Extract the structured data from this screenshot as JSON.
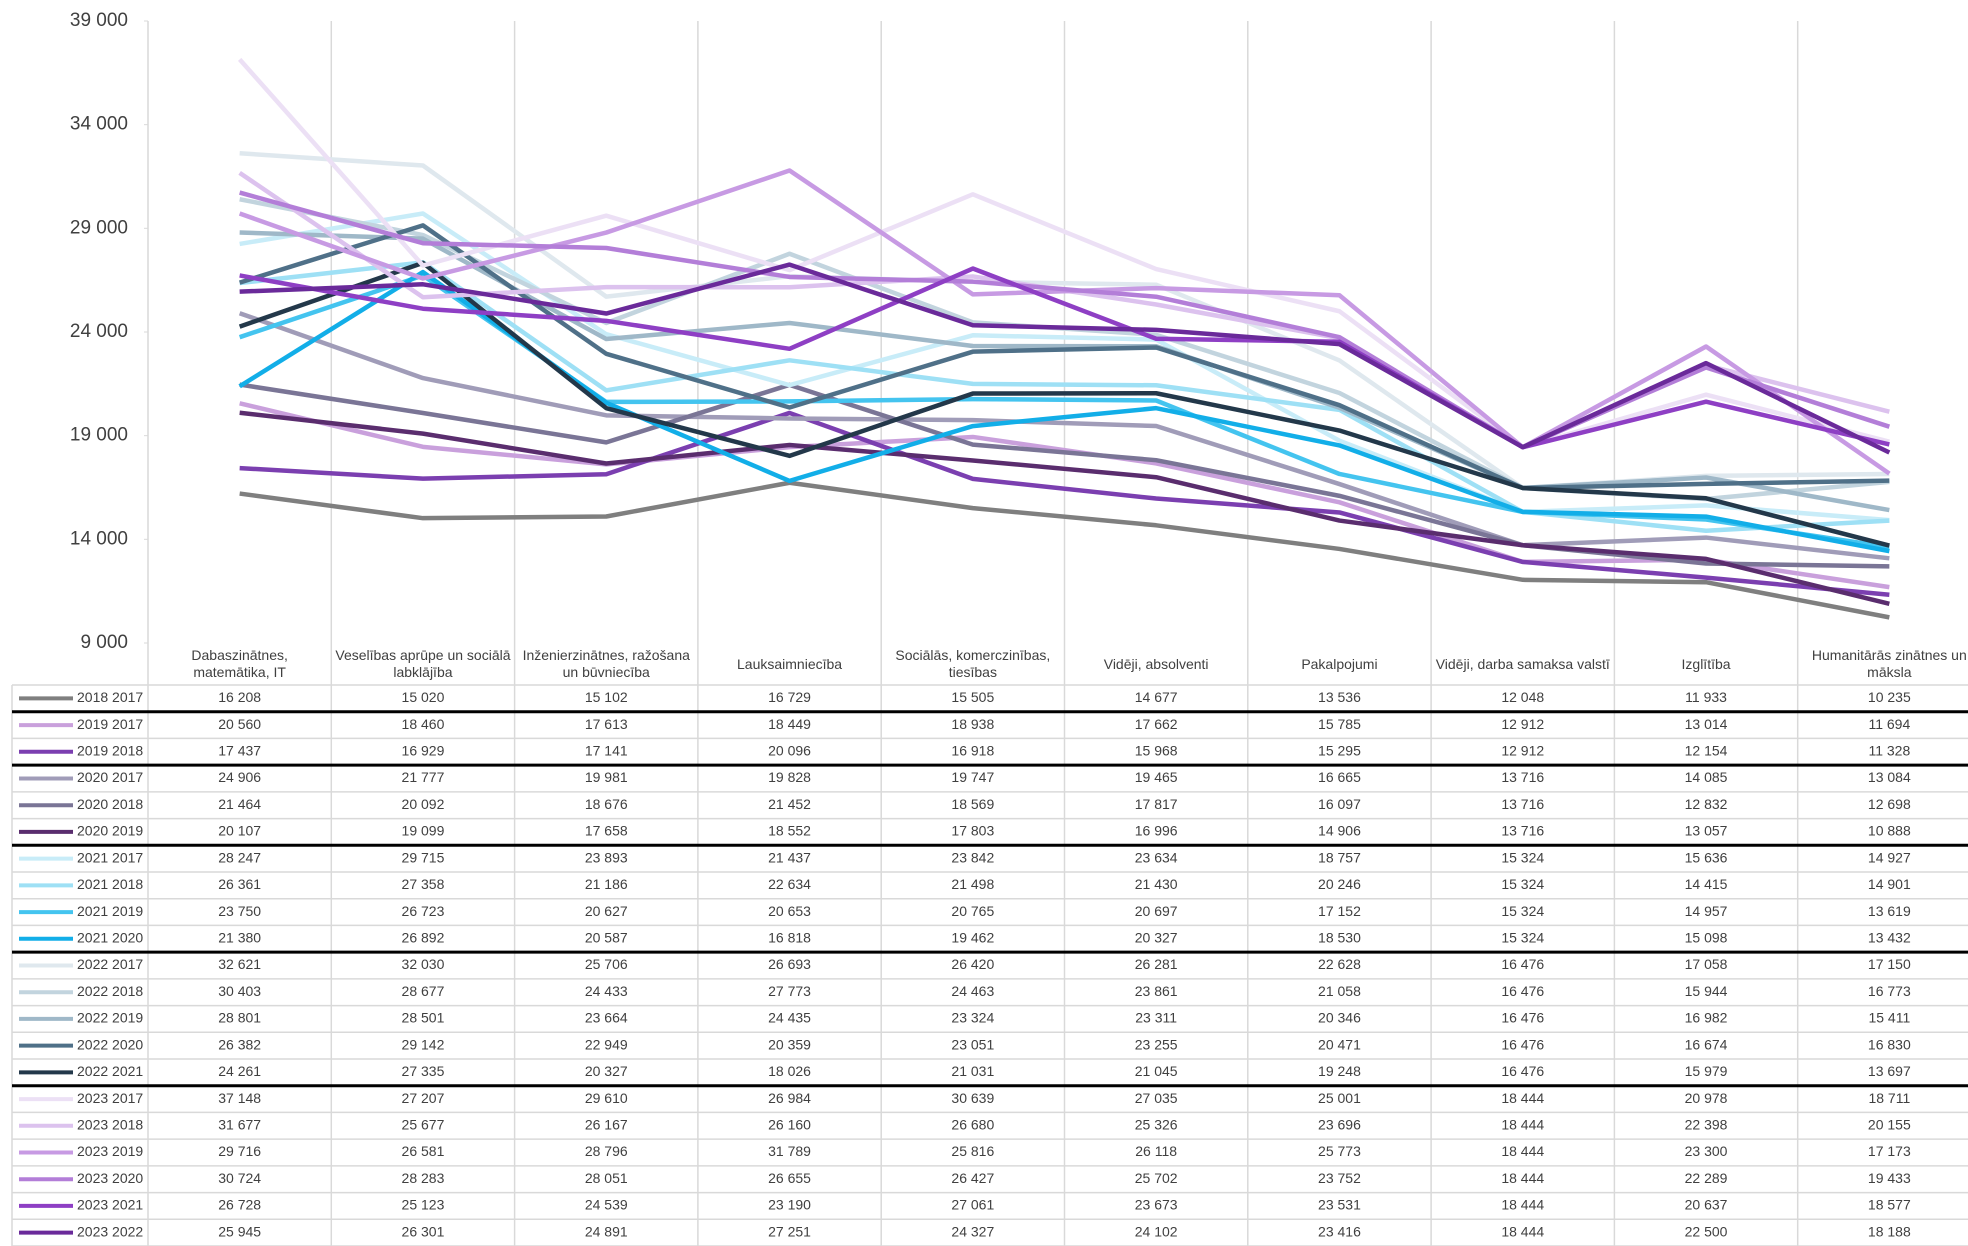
{
  "chart_data": {
    "type": "line",
    "ylim": [
      9000,
      39000
    ],
    "grid": true,
    "yticks": [
      {
        "value": 9000,
        "label": "9 000"
      },
      {
        "value": 14000,
        "label": "14 000"
      },
      {
        "value": 19000,
        "label": "19 000"
      },
      {
        "value": 24000,
        "label": "24 000"
      },
      {
        "value": 29000,
        "label": "29 000"
      },
      {
        "value": 34000,
        "label": "34 000"
      },
      {
        "value": 39000,
        "label": "39 000"
      }
    ],
    "categories": [
      "Dabaszinātnes, matemātika, IT",
      "Veselības aprūpe un sociālā labklājība",
      "Inženierzinātnes, ražošana un būvniecība",
      "Lauksaimniecība",
      "Sociālās, komerczinības, tiesības",
      "Vidēji, absolventi",
      "Pakalpojumi",
      "Vidēji, darba samaksa valstī",
      "Izglītība",
      "Humanitārās zinātnes un māksla"
    ],
    "series": [
      {
        "name": "2018 2017",
        "color": "#7f7f7f",
        "values": [
          16208,
          15020,
          15102,
          16729,
          15505,
          14677,
          13536,
          12048,
          11933,
          10235
        ],
        "value_labels": [
          "16 208",
          "15 020",
          "15 102",
          "16 729",
          "15 505",
          "14 677",
          "13 536",
          "12 048",
          "11 933",
          "10 235"
        ]
      },
      {
        "name": "2019 2017",
        "color": "#c9a0dc",
        "values": [
          20560,
          18460,
          17613,
          18449,
          18938,
          17662,
          15785,
          12912,
          13014,
          11694
        ],
        "value_labels": [
          "20 560",
          "18 460",
          "17 613",
          "18 449",
          "18 938",
          "17 662",
          "15 785",
          "12 912",
          "13 014",
          "11 694"
        ]
      },
      {
        "name": "2019 2018",
        "color": "#7b3fb0",
        "values": [
          17437,
          16929,
          17141,
          20096,
          16918,
          15968,
          15295,
          12912,
          12154,
          11328
        ],
        "value_labels": [
          "17 437",
          "16 929",
          "17 141",
          "20 096",
          "16 918",
          "15 968",
          "15 295",
          "12 912",
          "12 154",
          "11 328"
        ]
      },
      {
        "name": "2020 2017",
        "color": "#a09cb8",
        "values": [
          24906,
          21777,
          19981,
          19828,
          19747,
          19465,
          16665,
          13716,
          14085,
          13084
        ],
        "value_labels": [
          "24 906",
          "21 777",
          "19 981",
          "19 828",
          "19 747",
          "19 465",
          "16 665",
          "13 716",
          "14 085",
          "13 084"
        ]
      },
      {
        "name": "2020 2018",
        "color": "#7a7596",
        "values": [
          21464,
          20092,
          18676,
          21452,
          18569,
          17817,
          16097,
          13716,
          12832,
          12698
        ],
        "value_labels": [
          "21 464",
          "20 092",
          "18 676",
          "21 452",
          "18 569",
          "17 817",
          "16 097",
          "13 716",
          "12 832",
          "12 698"
        ]
      },
      {
        "name": "2020 2019",
        "color": "#5a2d6e",
        "values": [
          20107,
          19099,
          17658,
          18552,
          17803,
          16996,
          14906,
          13716,
          13057,
          10888
        ],
        "value_labels": [
          "20 107",
          "19 099",
          "17 658",
          "18 552",
          "17 803",
          "16 996",
          "14 906",
          "13 716",
          "13 057",
          "10 888"
        ]
      },
      {
        "name": "2021 2017",
        "color": "#c8ecf8",
        "values": [
          28247,
          29715,
          23893,
          21437,
          23842,
          23634,
          18757,
          15324,
          15636,
          14927
        ],
        "value_labels": [
          "28 247",
          "29 715",
          "23 893",
          "21 437",
          "23 842",
          "23 634",
          "18 757",
          "15 324",
          "15 636",
          "14 927"
        ]
      },
      {
        "name": "2021 2018",
        "color": "#9ee0f5",
        "values": [
          26361,
          27358,
          21186,
          22634,
          21498,
          21430,
          20246,
          15324,
          14415,
          14901
        ],
        "value_labels": [
          "26 361",
          "27 358",
          "21 186",
          "22 634",
          "21 498",
          "21 430",
          "20 246",
          "15 324",
          "14 415",
          "14 901"
        ]
      },
      {
        "name": "2021 2019",
        "color": "#44c4ef",
        "values": [
          23750,
          26723,
          20627,
          20653,
          20765,
          20697,
          17152,
          15324,
          14957,
          13619
        ],
        "value_labels": [
          "23 750",
          "26 723",
          "20 627",
          "20 653",
          "20 765",
          "20 697",
          "17 152",
          "15 324",
          "14 957",
          "13 619"
        ]
      },
      {
        "name": "2021 2020",
        "color": "#12aee8",
        "values": [
          21380,
          26892,
          20587,
          16818,
          19462,
          20327,
          18530,
          15324,
          15098,
          13432
        ],
        "value_labels": [
          "21 380",
          "26 892",
          "20 587",
          "16 818",
          "19 462",
          "20 327",
          "18 530",
          "15 324",
          "15 098",
          "13 432"
        ]
      },
      {
        "name": "2022 2017",
        "color": "#dfe8ee",
        "values": [
          32621,
          32030,
          25706,
          26693,
          26420,
          26281,
          22628,
          16476,
          17058,
          17150
        ],
        "value_labels": [
          "32 621",
          "32 030",
          "25 706",
          "26 693",
          "26 420",
          "26 281",
          "22 628",
          "16 476",
          "17 058",
          "17 150"
        ]
      },
      {
        "name": "2022 2018",
        "color": "#c2d4de",
        "values": [
          30403,
          28677,
          24433,
          27773,
          24463,
          23861,
          21058,
          16476,
          15944,
          16773
        ],
        "value_labels": [
          "30 403",
          "28 677",
          "24 433",
          "27 773",
          "24 463",
          "23 861",
          "21 058",
          "16 476",
          "15 944",
          "16 773"
        ]
      },
      {
        "name": "2022 2019",
        "color": "#9fb8c8",
        "values": [
          28801,
          28501,
          23664,
          24435,
          23324,
          23311,
          20346,
          16476,
          16982,
          15411
        ],
        "value_labels": [
          "28 801",
          "28 501",
          "23 664",
          "24 435",
          "23 324",
          "23 311",
          "20 346",
          "16 476",
          "16 982",
          "15 411"
        ]
      },
      {
        "name": "2022 2020",
        "color": "#4f7088",
        "values": [
          26382,
          29142,
          22949,
          20359,
          23051,
          23255,
          20471,
          16476,
          16674,
          16830
        ],
        "value_labels": [
          "26 382",
          "29 142",
          "22 949",
          "20 359",
          "23 051",
          "23 255",
          "20 471",
          "16 476",
          "16 674",
          "16 830"
        ]
      },
      {
        "name": "2022 2021",
        "color": "#23384a",
        "values": [
          24261,
          27335,
          20327,
          18026,
          21031,
          21045,
          19248,
          16476,
          15979,
          13697
        ],
        "value_labels": [
          "24 261",
          "27 335",
          "20 327",
          "18 026",
          "21 031",
          "21 045",
          "19 248",
          "16 476",
          "15 979",
          "13 697"
        ]
      },
      {
        "name": "2023 2017",
        "color": "#ece0f5",
        "values": [
          37148,
          27207,
          29610,
          26984,
          30639,
          27035,
          25001,
          18444,
          20978,
          18711
        ],
        "value_labels": [
          "37 148",
          "27 207",
          "29 610",
          "26 984",
          "30 639",
          "27 035",
          "25 001",
          "18 444",
          "20 978",
          "18 711"
        ]
      },
      {
        "name": "2023 2018",
        "color": "#dcc2ee",
        "values": [
          31677,
          25677,
          26167,
          26160,
          26680,
          25326,
          23696,
          18444,
          22398,
          20155
        ],
        "value_labels": [
          "31 677",
          "25 677",
          "26 167",
          "26 160",
          "26 680",
          "25 326",
          "23 696",
          "18 444",
          "22 398",
          "20 155"
        ]
      },
      {
        "name": "2023 2019",
        "color": "#c79ae3",
        "values": [
          29716,
          26581,
          28796,
          31789,
          25816,
          26118,
          25773,
          18444,
          23300,
          17173
        ],
        "value_labels": [
          "29 716",
          "26 581",
          "28 796",
          "31 789",
          "25 816",
          "26 118",
          "25 773",
          "18 444",
          "23 300",
          "17 173"
        ]
      },
      {
        "name": "2023 2020",
        "color": "#b37ed8",
        "values": [
          30724,
          28283,
          28051,
          26655,
          26427,
          25702,
          23752,
          18444,
          22289,
          19433
        ],
        "value_labels": [
          "30 724",
          "28 283",
          "28 051",
          "26 655",
          "26 427",
          "25 702",
          "23 752",
          "18 444",
          "22 289",
          "19 433"
        ]
      },
      {
        "name": "2023 2021",
        "color": "#8e3fc4",
        "values": [
          26728,
          25123,
          24539,
          23190,
          27061,
          23673,
          23531,
          18444,
          20637,
          18577
        ],
        "value_labels": [
          "26 728",
          "25 123",
          "24 539",
          "23 190",
          "27 061",
          "23 673",
          "23 531",
          "18 444",
          "20 637",
          "18 577"
        ]
      },
      {
        "name": "2023 2022",
        "color": "#6a2a9a",
        "values": [
          25945,
          26301,
          24891,
          27251,
          24327,
          24102,
          23416,
          18444,
          22500,
          18188
        ],
        "value_labels": [
          "25 945",
          "26 301",
          "24 891",
          "27 251",
          "24 327",
          "24 102",
          "23 416",
          "18 444",
          "22 500",
          "18 188"
        ]
      }
    ]
  }
}
